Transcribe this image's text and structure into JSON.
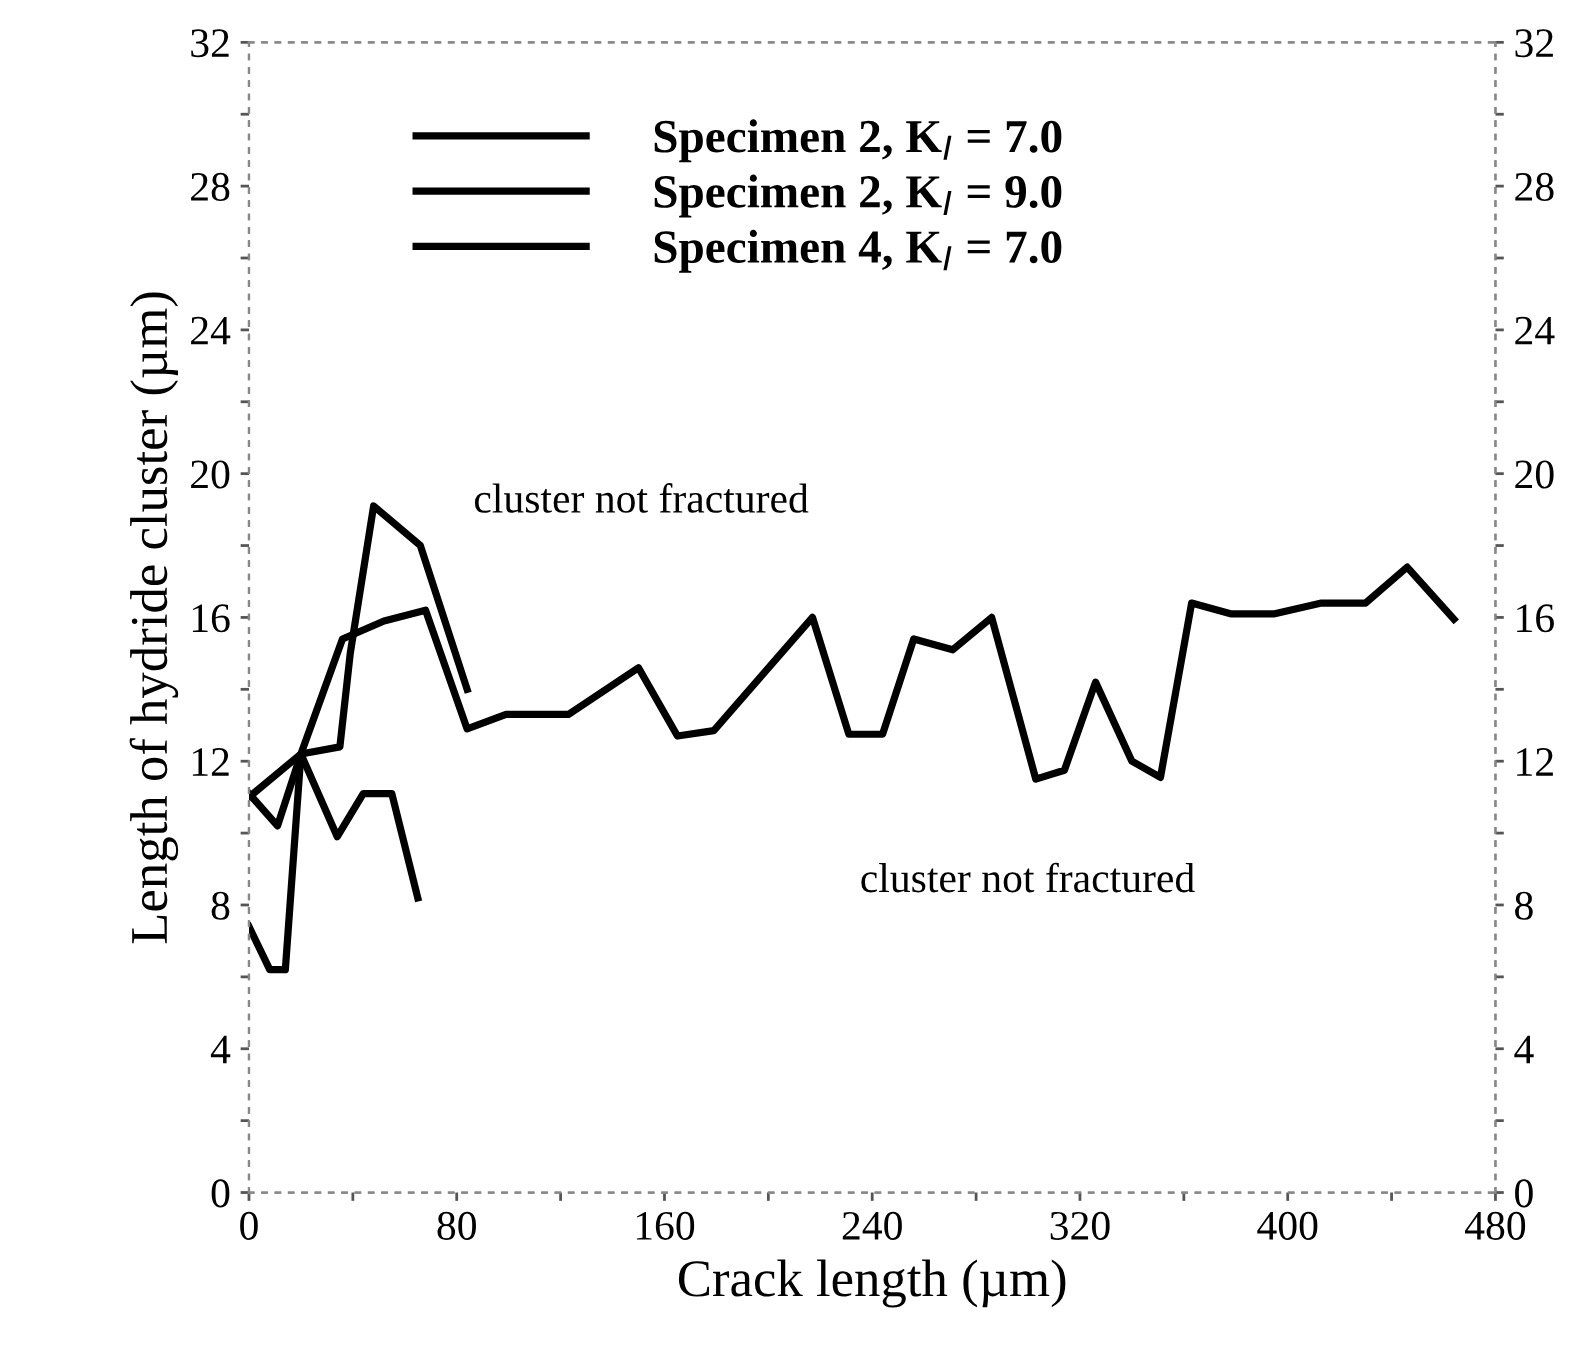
{
  "chart_data": {
    "type": "line",
    "xlabel": "Crack length (µm)",
    "ylabel": "Length of hydride cluster (µm)",
    "xlim": [
      0,
      480
    ],
    "xticks": [
      0,
      80,
      160,
      240,
      320,
      400,
      480
    ],
    "ylim": [
      0,
      32
    ],
    "yticks": [
      0,
      4,
      8,
      12,
      16,
      20,
      24,
      28,
      32
    ],
    "y2lim": [
      0,
      32
    ],
    "y2ticks": [
      0,
      4,
      8,
      12,
      16,
      20,
      24,
      28,
      32
    ],
    "legend": "top left",
    "grid": false,
    "annotations": [
      "cluster not fractured",
      "cluster not fractured"
    ],
    "series": [
      {
        "name": "Specimen 2, K$_{I}$ = 7.0",
        "color": "#000000",
        "x": [
          0,
          20,
          34,
          44,
          55,
          65
        ],
        "values": [
          11.0,
          12.2,
          9.9,
          11.1,
          11.1,
          8.2
        ]
      },
      {
        "name": "Specimen 2, K$_{I}$ = 9.0",
        "color": "#000000",
        "x": [
          0,
          8,
          14,
          20,
          35,
          39,
          48,
          66,
          84
        ],
        "values": [
          7.4,
          6.2,
          6.2,
          12.2,
          12.4,
          15.0,
          19.1,
          18.0,
          14.0
        ]
      },
      {
        "name": "Specimen 4, K$_{I}$ = 7.0",
        "color": "#000000",
        "x": [
          0,
          11,
          20,
          36,
          52,
          68,
          84,
          99,
          123,
          150,
          165,
          179,
          217,
          231,
          244,
          256,
          271,
          286,
          303,
          314,
          326,
          340,
          351,
          363,
          378,
          395,
          413,
          430,
          446,
          464
        ],
        "values": [
          11.1,
          10.2,
          12.2,
          15.4,
          15.9,
          16.2,
          12.9,
          13.3,
          13.3,
          14.6,
          12.7,
          12.85,
          16.0,
          12.75,
          12.75,
          15.4,
          15.1,
          16.0,
          11.5,
          11.75,
          14.2,
          12.0,
          11.55,
          16.4,
          16.1,
          16.1,
          16.4,
          16.4,
          17.4,
          15.95
        ]
      }
    ]
  }
}
